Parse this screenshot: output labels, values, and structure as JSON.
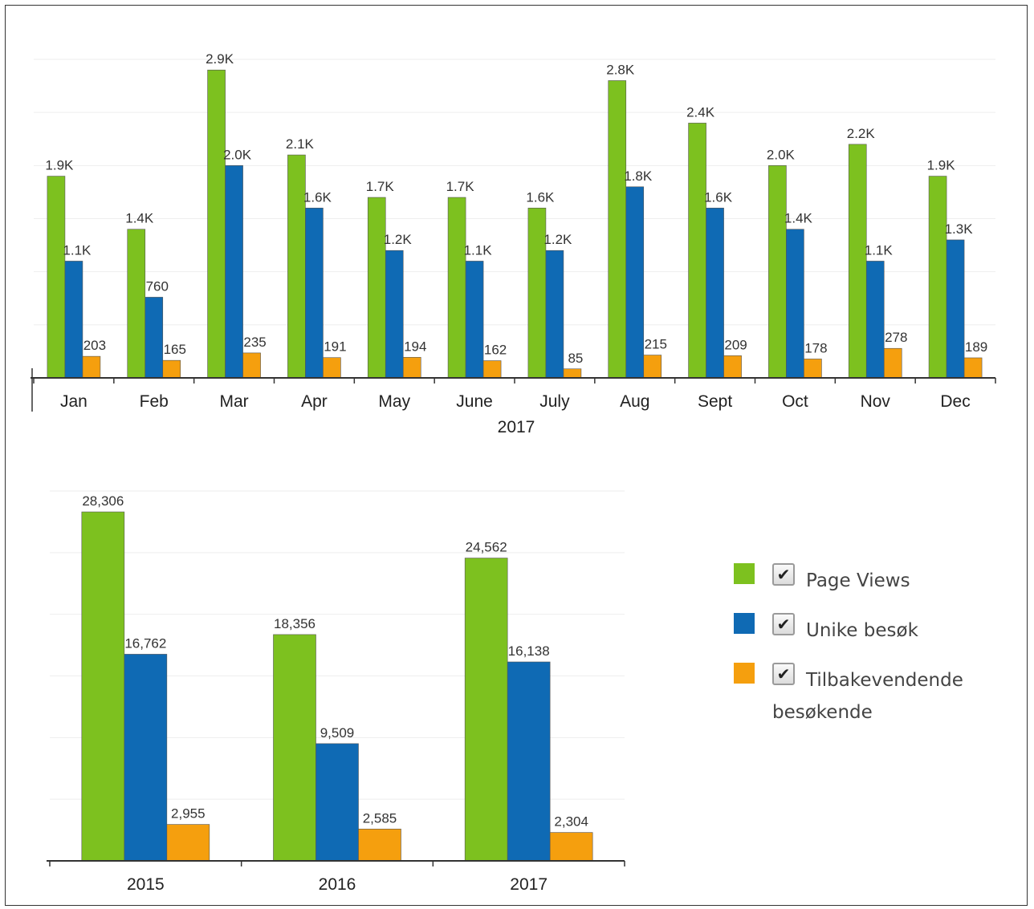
{
  "legend": {
    "items": [
      {
        "label": "Page Views",
        "color": "#7dc11f",
        "checked": true
      },
      {
        "label": "Unike besøk",
        "color": "#0f6ab4",
        "checked": true
      },
      {
        "label": "Tilbakevendende",
        "label_line2": "besøkende",
        "color": "#f59f0e",
        "checked": true
      }
    ],
    "check_icon": "checkmark-icon"
  },
  "chart_data": [
    {
      "type": "bar",
      "title": "",
      "xlabel": "2017",
      "ylabel": "",
      "ylim": [
        0,
        3000
      ],
      "grid": true,
      "categories": [
        "Jan",
        "Feb",
        "Mar",
        "Apr",
        "May",
        "June",
        "July",
        "Aug",
        "Sept",
        "Oct",
        "Nov",
        "Dec"
      ],
      "series": [
        {
          "name": "Page Views",
          "color": "#7dc11f",
          "values": [
            1900,
            1400,
            2900,
            2100,
            1700,
            1700,
            1600,
            2800,
            2400,
            2000,
            2200,
            1900
          ],
          "labels": [
            "1.9K",
            "1.4K",
            "2.9K",
            "2.1K",
            "1.7K",
            "1.7K",
            "1.6K",
            "2.8K",
            "2.4K",
            "2.0K",
            "2.2K",
            "1.9K"
          ]
        },
        {
          "name": "Unike besøk",
          "color": "#0f6ab4",
          "values": [
            1100,
            760,
            2000,
            1600,
            1200,
            1100,
            1200,
            1800,
            1600,
            1400,
            1100,
            1300
          ],
          "labels": [
            "1.1K",
            "760",
            "2.0K",
            "1.6K",
            "1.2K",
            "1.1K",
            "1.2K",
            "1.8K",
            "1.6K",
            "1.4K",
            "1.1K",
            "1.3K"
          ]
        },
        {
          "name": "Tilbakevendende besøkende",
          "color": "#f59f0e",
          "values": [
            203,
            165,
            235,
            191,
            194,
            162,
            85,
            215,
            209,
            178,
            278,
            189
          ],
          "labels": [
            "203",
            "165",
            "235",
            "191",
            "194",
            "162",
            "85",
            "215",
            "209",
            "178",
            "278",
            "189"
          ]
        }
      ]
    },
    {
      "type": "bar",
      "title": "",
      "xlabel": "",
      "ylabel": "",
      "ylim": [
        0,
        30000
      ],
      "grid": true,
      "categories": [
        "2015",
        "2016",
        "2017"
      ],
      "series": [
        {
          "name": "Page Views",
          "color": "#7dc11f",
          "values": [
            28306,
            18356,
            24562
          ],
          "labels": [
            "28,306",
            "18,356",
            "24,562"
          ]
        },
        {
          "name": "Unike besøk",
          "color": "#0f6ab4",
          "values": [
            16762,
            9509,
            16138
          ],
          "labels": [
            "16,762",
            "9,509",
            "16,138"
          ]
        },
        {
          "name": "Tilbakevendende besøkende",
          "color": "#f59f0e",
          "values": [
            2955,
            2585,
            2304
          ],
          "labels": [
            "2,955",
            "2,585",
            "2,304"
          ]
        }
      ]
    }
  ]
}
